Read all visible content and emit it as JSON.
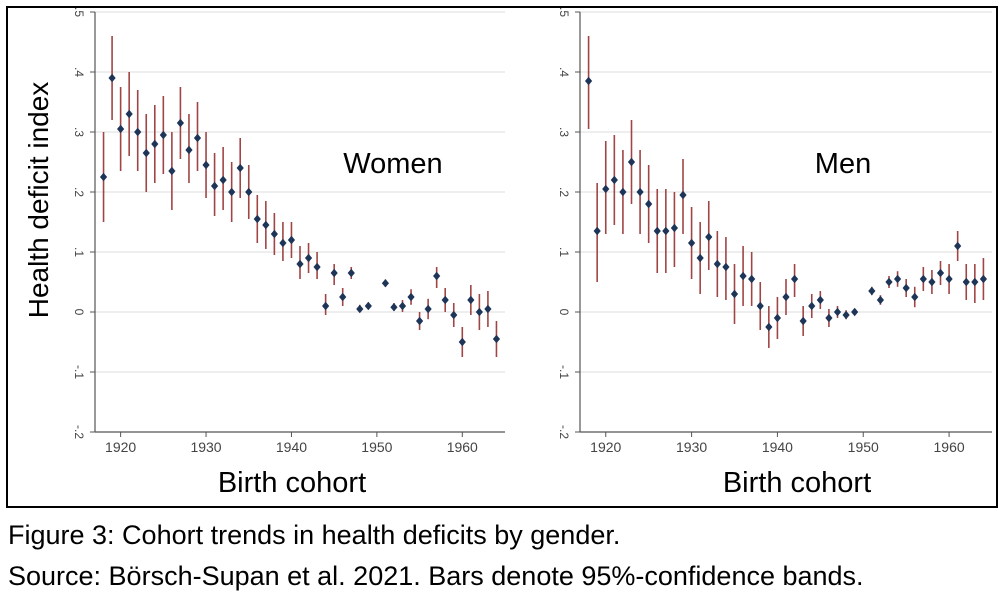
{
  "figure": {
    "ylabel": "Health deficit index",
    "caption_line1": "Figure 3: Cohort trends in health deficits by gender.",
    "caption_line2": "Source: Börsch-Supan et al. 2021. Bars denote 95%-confidence bands."
  },
  "colors": {
    "marker": "#1f3557",
    "ci": "#a04545",
    "axis": "#555555",
    "grid": "#dddddd"
  },
  "chart_data": [
    {
      "type": "scatter",
      "title": "Women",
      "xlabel": "Birth cohort",
      "ylabel": "Health deficit index",
      "xlim": [
        1917,
        1965
      ],
      "ylim": [
        -0.2,
        0.5
      ],
      "xticks": [
        1920,
        1930,
        1940,
        1950,
        1960
      ],
      "xtick_labels": [
        "1920",
        "1930",
        "1940",
        "1950",
        "1960"
      ],
      "yticks": [
        -0.2,
        -0.1,
        0,
        0.1,
        0.2,
        0.3,
        0.4,
        0.5
      ],
      "ytick_labels": [
        "-.2",
        "-.1",
        "0",
        ".1",
        ".2",
        ".3",
        ".4",
        ".5"
      ],
      "grid": true,
      "points": [
        {
          "x": 1918,
          "y": 0.225,
          "lo": 0.15,
          "hi": 0.3
        },
        {
          "x": 1919,
          "y": 0.39,
          "lo": 0.32,
          "hi": 0.46
        },
        {
          "x": 1920,
          "y": 0.305,
          "lo": 0.235,
          "hi": 0.375
        },
        {
          "x": 1921,
          "y": 0.33,
          "lo": 0.26,
          "hi": 0.4
        },
        {
          "x": 1922,
          "y": 0.3,
          "lo": 0.235,
          "hi": 0.37
        },
        {
          "x": 1923,
          "y": 0.265,
          "lo": 0.2,
          "hi": 0.33
        },
        {
          "x": 1924,
          "y": 0.28,
          "lo": 0.215,
          "hi": 0.345
        },
        {
          "x": 1925,
          "y": 0.295,
          "lo": 0.23,
          "hi": 0.36
        },
        {
          "x": 1926,
          "y": 0.235,
          "lo": 0.17,
          "hi": 0.3
        },
        {
          "x": 1927,
          "y": 0.315,
          "lo": 0.255,
          "hi": 0.375
        },
        {
          "x": 1928,
          "y": 0.27,
          "lo": 0.215,
          "hi": 0.33
        },
        {
          "x": 1929,
          "y": 0.29,
          "lo": 0.235,
          "hi": 0.35
        },
        {
          "x": 1930,
          "y": 0.245,
          "lo": 0.19,
          "hi": 0.3
        },
        {
          "x": 1931,
          "y": 0.21,
          "lo": 0.16,
          "hi": 0.265
        },
        {
          "x": 1932,
          "y": 0.22,
          "lo": 0.17,
          "hi": 0.275
        },
        {
          "x": 1933,
          "y": 0.2,
          "lo": 0.15,
          "hi": 0.25
        },
        {
          "x": 1934,
          "y": 0.24,
          "lo": 0.19,
          "hi": 0.29
        },
        {
          "x": 1935,
          "y": 0.2,
          "lo": 0.155,
          "hi": 0.245
        },
        {
          "x": 1936,
          "y": 0.155,
          "lo": 0.115,
          "hi": 0.195
        },
        {
          "x": 1937,
          "y": 0.145,
          "lo": 0.105,
          "hi": 0.185
        },
        {
          "x": 1938,
          "y": 0.13,
          "lo": 0.095,
          "hi": 0.165
        },
        {
          "x": 1939,
          "y": 0.115,
          "lo": 0.085,
          "hi": 0.15
        },
        {
          "x": 1940,
          "y": 0.12,
          "lo": 0.09,
          "hi": 0.15
        },
        {
          "x": 1941,
          "y": 0.08,
          "lo": 0.055,
          "hi": 0.11
        },
        {
          "x": 1942,
          "y": 0.09,
          "lo": 0.065,
          "hi": 0.115
        },
        {
          "x": 1943,
          "y": 0.075,
          "lo": 0.055,
          "hi": 0.1
        },
        {
          "x": 1944,
          "y": 0.01,
          "lo": -0.005,
          "hi": 0.03
        },
        {
          "x": 1945,
          "y": 0.065,
          "lo": 0.045,
          "hi": 0.08
        },
        {
          "x": 1946,
          "y": 0.025,
          "lo": 0.01,
          "hi": 0.04
        },
        {
          "x": 1947,
          "y": 0.065,
          "lo": 0.055,
          "hi": 0.075
        },
        {
          "x": 1948,
          "y": 0.005,
          "lo": 0.0,
          "hi": 0.012
        },
        {
          "x": 1949,
          "y": 0.01,
          "lo": 0.005,
          "hi": 0.016
        },
        {
          "x": 1951,
          "y": 0.048,
          "lo": 0.042,
          "hi": 0.054
        },
        {
          "x": 1952,
          "y": 0.008,
          "lo": 0.002,
          "hi": 0.015
        },
        {
          "x": 1953,
          "y": 0.01,
          "lo": 0.0,
          "hi": 0.02
        },
        {
          "x": 1954,
          "y": 0.025,
          "lo": 0.012,
          "hi": 0.038
        },
        {
          "x": 1955,
          "y": -0.015,
          "lo": -0.03,
          "hi": 0.0
        },
        {
          "x": 1956,
          "y": 0.005,
          "lo": -0.012,
          "hi": 0.022
        },
        {
          "x": 1957,
          "y": 0.06,
          "lo": 0.04,
          "hi": 0.075
        },
        {
          "x": 1958,
          "y": 0.02,
          "lo": 0.0,
          "hi": 0.04
        },
        {
          "x": 1959,
          "y": -0.005,
          "lo": -0.025,
          "hi": 0.015
        },
        {
          "x": 1960,
          "y": -0.05,
          "lo": -0.075,
          "hi": -0.025
        },
        {
          "x": 1961,
          "y": 0.02,
          "lo": -0.005,
          "hi": 0.045
        },
        {
          "x": 1962,
          "y": 0.0,
          "lo": -0.03,
          "hi": 0.03
        },
        {
          "x": 1963,
          "y": 0.005,
          "lo": -0.025,
          "hi": 0.035
        },
        {
          "x": 1964,
          "y": -0.045,
          "lo": -0.075,
          "hi": -0.015
        }
      ]
    },
    {
      "type": "scatter",
      "title": "Men",
      "xlabel": "Birth cohort",
      "ylabel": "Health deficit index",
      "xlim": [
        1917,
        1965
      ],
      "ylim": [
        -0.2,
        0.5
      ],
      "xticks": [
        1920,
        1930,
        1940,
        1950,
        1960
      ],
      "xtick_labels": [
        "1920",
        "1930",
        "1940",
        "1950",
        "1960"
      ],
      "yticks": [
        -0.2,
        -0.1,
        0,
        0.1,
        0.2,
        0.3,
        0.4,
        0.5
      ],
      "ytick_labels": [
        "-.2",
        "-.1",
        "0",
        ".1",
        ".2",
        ".3",
        ".4",
        ".5"
      ],
      "grid": true,
      "points": [
        {
          "x": 1918,
          "y": 0.385,
          "lo": 0.305,
          "hi": 0.46
        },
        {
          "x": 1919,
          "y": 0.135,
          "lo": 0.05,
          "hi": 0.215
        },
        {
          "x": 1920,
          "y": 0.205,
          "lo": 0.13,
          "hi": 0.285
        },
        {
          "x": 1921,
          "y": 0.22,
          "lo": 0.145,
          "hi": 0.295
        },
        {
          "x": 1922,
          "y": 0.2,
          "lo": 0.13,
          "hi": 0.27
        },
        {
          "x": 1923,
          "y": 0.25,
          "lo": 0.18,
          "hi": 0.32
        },
        {
          "x": 1924,
          "y": 0.2,
          "lo": 0.13,
          "hi": 0.27
        },
        {
          "x": 1925,
          "y": 0.18,
          "lo": 0.115,
          "hi": 0.245
        },
        {
          "x": 1926,
          "y": 0.135,
          "lo": 0.065,
          "hi": 0.205
        },
        {
          "x": 1927,
          "y": 0.135,
          "lo": 0.065,
          "hi": 0.205
        },
        {
          "x": 1928,
          "y": 0.14,
          "lo": 0.075,
          "hi": 0.2
        },
        {
          "x": 1929,
          "y": 0.195,
          "lo": 0.13,
          "hi": 0.255
        },
        {
          "x": 1930,
          "y": 0.115,
          "lo": 0.055,
          "hi": 0.175
        },
        {
          "x": 1931,
          "y": 0.09,
          "lo": 0.03,
          "hi": 0.15
        },
        {
          "x": 1932,
          "y": 0.125,
          "lo": 0.07,
          "hi": 0.185
        },
        {
          "x": 1933,
          "y": 0.08,
          "lo": 0.025,
          "hi": 0.135
        },
        {
          "x": 1934,
          "y": 0.075,
          "lo": 0.02,
          "hi": 0.125
        },
        {
          "x": 1935,
          "y": 0.03,
          "lo": -0.02,
          "hi": 0.08
        },
        {
          "x": 1936,
          "y": 0.06,
          "lo": 0.01,
          "hi": 0.11
        },
        {
          "x": 1937,
          "y": 0.055,
          "lo": 0.01,
          "hi": 0.1
        },
        {
          "x": 1938,
          "y": 0.01,
          "lo": -0.03,
          "hi": 0.05
        },
        {
          "x": 1939,
          "y": -0.025,
          "lo": -0.06,
          "hi": 0.01
        },
        {
          "x": 1940,
          "y": -0.01,
          "lo": -0.045,
          "hi": 0.025
        },
        {
          "x": 1941,
          "y": 0.025,
          "lo": -0.005,
          "hi": 0.055
        },
        {
          "x": 1942,
          "y": 0.055,
          "lo": 0.025,
          "hi": 0.08
        },
        {
          "x": 1943,
          "y": -0.015,
          "lo": -0.04,
          "hi": 0.01
        },
        {
          "x": 1944,
          "y": 0.01,
          "lo": -0.01,
          "hi": 0.03
        },
        {
          "x": 1945,
          "y": 0.02,
          "lo": 0.005,
          "hi": 0.035
        },
        {
          "x": 1946,
          "y": -0.01,
          "lo": -0.025,
          "hi": 0.005
        },
        {
          "x": 1947,
          "y": 0.0,
          "lo": -0.01,
          "hi": 0.01
        },
        {
          "x": 1948,
          "y": -0.005,
          "lo": -0.012,
          "hi": 0.003
        },
        {
          "x": 1949,
          "y": 0.0,
          "lo": -0.005,
          "hi": 0.005
        },
        {
          "x": 1951,
          "y": 0.035,
          "lo": 0.028,
          "hi": 0.042
        },
        {
          "x": 1952,
          "y": 0.02,
          "lo": 0.012,
          "hi": 0.028
        },
        {
          "x": 1953,
          "y": 0.05,
          "lo": 0.04,
          "hi": 0.06
        },
        {
          "x": 1954,
          "y": 0.055,
          "lo": 0.042,
          "hi": 0.068
        },
        {
          "x": 1955,
          "y": 0.04,
          "lo": 0.025,
          "hi": 0.055
        },
        {
          "x": 1956,
          "y": 0.025,
          "lo": 0.008,
          "hi": 0.042
        },
        {
          "x": 1957,
          "y": 0.055,
          "lo": 0.035,
          "hi": 0.075
        },
        {
          "x": 1958,
          "y": 0.05,
          "lo": 0.03,
          "hi": 0.07
        },
        {
          "x": 1959,
          "y": 0.065,
          "lo": 0.045,
          "hi": 0.085
        },
        {
          "x": 1960,
          "y": 0.055,
          "lo": 0.03,
          "hi": 0.08
        },
        {
          "x": 1961,
          "y": 0.11,
          "lo": 0.085,
          "hi": 0.135
        },
        {
          "x": 1962,
          "y": 0.05,
          "lo": 0.02,
          "hi": 0.08
        },
        {
          "x": 1963,
          "y": 0.05,
          "lo": 0.015,
          "hi": 0.08
        },
        {
          "x": 1964,
          "y": 0.055,
          "lo": 0.02,
          "hi": 0.09
        }
      ]
    }
  ]
}
